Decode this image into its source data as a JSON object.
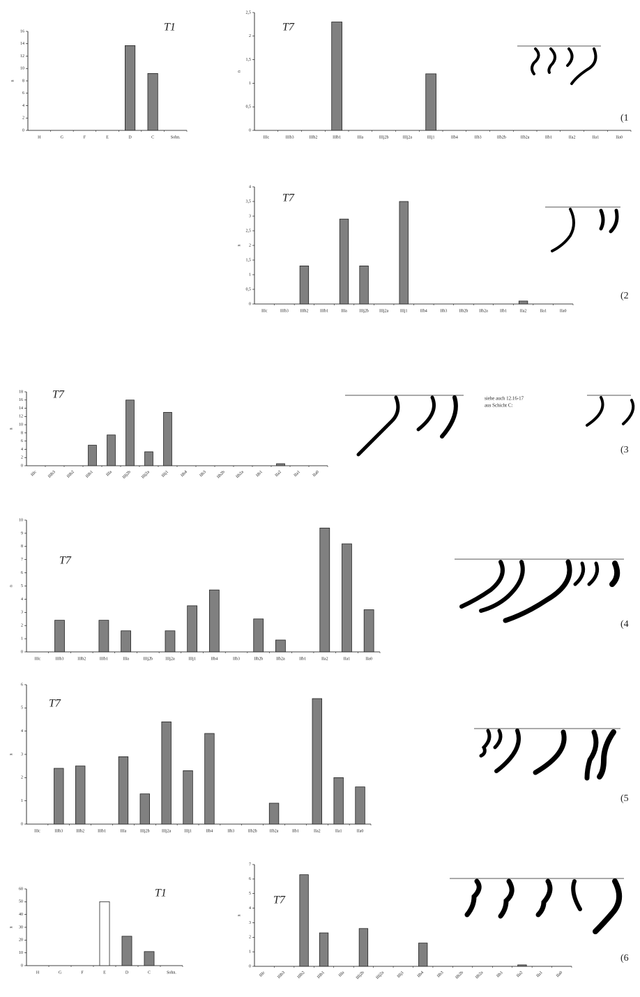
{
  "chart_data": [
    {
      "type": "bar",
      "title": "T1",
      "ylabel": "n",
      "categories": [
        "H",
        "G",
        "F",
        "E",
        "D",
        "C",
        "Sohn."
      ],
      "values": [
        0,
        0,
        0,
        0,
        13.7,
        9.2,
        0
      ],
      "color": "#808080",
      "ylim": [
        0,
        16
      ],
      "yticks": [
        0,
        2,
        4,
        6,
        8,
        10,
        12,
        14,
        16
      ]
    },
    {
      "type": "bar",
      "title": "T7",
      "ylabel": "n",
      "categories": [
        "IIIc",
        "IIIb3",
        "IIIb2",
        "IIIb1",
        "IIIa",
        "IIIj2b",
        "IIIj2a",
        "IIIj1",
        "IIb4",
        "IIb3",
        "IIb2b",
        "IIb2a",
        "IIb1",
        "IIa2",
        "IIa1",
        "IIa0"
      ],
      "values": [
        0,
        0,
        0,
        2.3,
        0,
        0,
        0,
        1.2,
        0,
        0,
        0,
        0,
        0,
        0,
        0,
        0
      ],
      "color": "#808080",
      "ylim": [
        0,
        2.5
      ],
      "yticks": [
        0,
        {
          "value": 0.5,
          "label": "0,5"
        },
        1,
        {
          "value": 1.5,
          "label": "1,5"
        },
        2,
        {
          "value": 2.5,
          "label": "2,5"
        }
      ]
    },
    {
      "type": "bar",
      "title": "T7",
      "ylabel": "n",
      "categories": [
        "IIIc",
        "IIIb3",
        "IIIb2",
        "IIIb1",
        "IIIa",
        "IIIj2b",
        "IIIj2a",
        "IIIj1",
        "IIb4",
        "IIb3",
        "IIb2b",
        "IIb2a",
        "IIb1",
        "IIa2",
        "IIa1",
        "IIa0"
      ],
      "values": [
        0,
        0,
        1.3,
        0,
        2.9,
        1.3,
        0,
        3.5,
        0,
        0,
        0,
        0,
        0,
        0.1,
        0,
        0
      ],
      "color": "#808080",
      "ylim": [
        0,
        4
      ],
      "yticks": [
        0,
        {
          "value": 0.5,
          "label": "0,5"
        },
        1,
        {
          "value": 1.5,
          "label": "1,5"
        },
        2,
        {
          "value": 2.5,
          "label": "2,5"
        },
        3,
        {
          "value": 3.5,
          "label": "3,5"
        },
        4
      ]
    },
    {
      "type": "bar",
      "title": "T7",
      "ylabel": "n",
      "rotate_xlabels": true,
      "categories": [
        "IIIc",
        "IIIb3",
        "IIIb2",
        "IIIb1",
        "IIIa",
        "IIIj2b",
        "IIIj2a",
        "IIIj1",
        "IIb4",
        "IIb3",
        "IIb2b",
        "IIb2a",
        "IIb1",
        "IIa2",
        "IIa1",
        "IIa0"
      ],
      "values": [
        0,
        0,
        0,
        5,
        7.5,
        16,
        3.4,
        13,
        0,
        0,
        0,
        0,
        0,
        0.5,
        0,
        0
      ],
      "color": "#808080",
      "ylim": [
        0,
        18
      ],
      "yticks": [
        0,
        2,
        4,
        6,
        8,
        10,
        12,
        14,
        16,
        18
      ]
    },
    {
      "type": "bar",
      "title": "T7",
      "ylabel": "n",
      "categories": [
        "IIIc",
        "IIIb3",
        "IIIb2",
        "IIIb1",
        "IIIa",
        "IIIj2b",
        "IIIj2a",
        "IIIj1",
        "IIb4",
        "IIb3",
        "IIb2b",
        "IIb2a",
        "IIb1",
        "IIa2",
        "IIa1",
        "IIa0"
      ],
      "values": [
        0,
        2.4,
        0,
        2.4,
        1.6,
        0,
        1.6,
        3.5,
        4.7,
        0,
        2.5,
        0.9,
        0,
        9.4,
        8.2,
        3.2
      ],
      "color": "#808080",
      "ylim": [
        0,
        10
      ],
      "yticks": [
        0,
        1,
        2,
        3,
        4,
        5,
        6,
        7,
        8,
        9,
        10
      ]
    },
    {
      "type": "bar",
      "title": "T7",
      "ylabel": "n",
      "categories": [
        "IIIc",
        "IIIb3",
        "IIIb2",
        "IIIb1",
        "IIIa",
        "IIIj2b",
        "IIIj2a",
        "IIIj1",
        "IIb4",
        "IIb3",
        "IIb2b",
        "IIb2a",
        "IIb1",
        "IIa2",
        "IIa1",
        "IIa0"
      ],
      "values": [
        0,
        2.4,
        2.5,
        0,
        2.9,
        1.3,
        4.4,
        2.3,
        3.9,
        0,
        0,
        0.9,
        0,
        5.4,
        2.0,
        1.6
      ],
      "color": "#808080",
      "ylim": [
        0,
        6
      ],
      "yticks": [
        0,
        1,
        2,
        3,
        4,
        5,
        6
      ]
    },
    {
      "type": "bar",
      "title": "T1",
      "ylabel": "n",
      "categories": [
        "H",
        "G",
        "F",
        "E",
        "D",
        "C",
        "Sohn."
      ],
      "values": [
        0,
        0,
        0,
        50,
        23,
        11,
        0
      ],
      "color": "#808080",
      "colors": [
        "#808080",
        "#808080",
        "#808080",
        "#ffffff",
        "#808080",
        "#808080",
        "#808080"
      ],
      "ylim": [
        0,
        60
      ],
      "yticks": [
        0,
        10,
        20,
        30,
        40,
        50,
        60
      ]
    },
    {
      "type": "bar",
      "title": "T7",
      "ylabel": "n",
      "rotate_xlabels": true,
      "categories": [
        "IIIc",
        "IIIb3",
        "IIIb2",
        "IIIb1",
        "IIIa",
        "IIIj2b",
        "IIIj2a",
        "IIIj1",
        "IIb4",
        "IIb3",
        "IIb2b",
        "IIb2a",
        "IIb1",
        "IIa2",
        "IIa1",
        "IIa0"
      ],
      "values": [
        0,
        0,
        6.3,
        2.3,
        0,
        2.6,
        0,
        0,
        1.6,
        0,
        0,
        0,
        0,
        0.1,
        0,
        0
      ],
      "color": "#808080",
      "ylim": [
        0,
        7
      ],
      "yticks": [
        0,
        1,
        2,
        3,
        4,
        5,
        6,
        7
      ]
    }
  ],
  "panel_labels": [
    "(1",
    "(2",
    "(3",
    "(4",
    "(5",
    "(6"
  ],
  "note_lines": [
    "siehe auch 12.16-17",
    "aus Schicht C:"
  ]
}
